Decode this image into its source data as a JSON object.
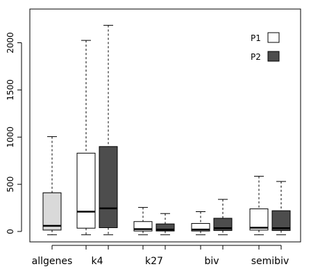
{
  "chart_data": {
    "type": "boxplot",
    "title": "",
    "xlabel": "",
    "ylabel": "",
    "ylim": [
      -90,
      2300
    ],
    "y_ticks": [
      0,
      500,
      1000,
      1500,
      2000
    ],
    "y_tick_labels": [
      "0",
      "500",
      "1000",
      "1500",
      "2000"
    ],
    "grid": false,
    "legend_position": "top-right",
    "colors": {
      "P1": "#ffffff",
      "P2": "#4d4d4d",
      "allgenes": "#d9d9d9"
    },
    "legend": [
      {
        "name": "P1",
        "color": "#ffffff"
      },
      {
        "name": "P2",
        "color": "#4d4d4d"
      }
    ],
    "groups": [
      {
        "label": "allgenes",
        "boxes": [
          {
            "series": "",
            "color": "#d9d9d9",
            "min": -35,
            "q1": 15,
            "median": 60,
            "q3": 410,
            "max": 1005
          }
        ]
      },
      {
        "label": "k4",
        "boxes": [
          {
            "series": "P1",
            "color": "#ffffff",
            "min": -35,
            "q1": 35,
            "median": 210,
            "q3": 830,
            "max": 2025
          },
          {
            "series": "P2",
            "color": "#4d4d4d",
            "min": -35,
            "q1": 40,
            "median": 245,
            "q3": 900,
            "max": 2185
          }
        ]
      },
      {
        "label": "k27",
        "boxes": [
          {
            "series": "P1",
            "color": "#ffffff",
            "min": -35,
            "q1": 5,
            "median": 25,
            "q3": 105,
            "max": 255
          },
          {
            "series": "P2",
            "color": "#4d4d4d",
            "min": -35,
            "q1": 5,
            "median": 20,
            "q3": 80,
            "max": 190
          }
        ]
      },
      {
        "label": "biv",
        "boxes": [
          {
            "series": "P1",
            "color": "#ffffff",
            "min": -35,
            "q1": 5,
            "median": 20,
            "q3": 85,
            "max": 210
          },
          {
            "series": "P2",
            "color": "#4d4d4d",
            "min": -35,
            "q1": 10,
            "median": 35,
            "q3": 140,
            "max": 340
          }
        ]
      },
      {
        "label": "semibiv",
        "boxes": [
          {
            "series": "P1",
            "color": "#ffffff",
            "min": -35,
            "q1": 15,
            "median": 40,
            "q3": 240,
            "max": 585
          },
          {
            "series": "P2",
            "color": "#4d4d4d",
            "min": -35,
            "q1": 10,
            "median": 35,
            "q3": 220,
            "max": 530
          }
        ]
      }
    ]
  }
}
